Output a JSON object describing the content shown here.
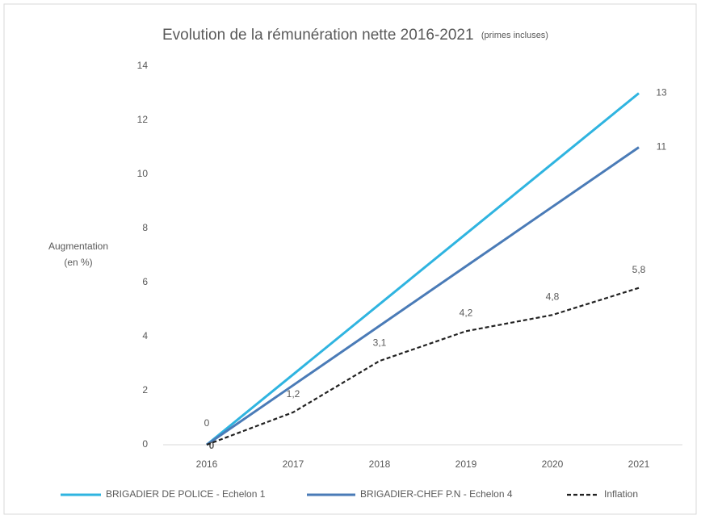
{
  "chart_data": {
    "type": "line",
    "title": "Evolution de la rémunération nette 2016-2021",
    "subtitle": "(primes incluses)",
    "y_label": [
      "Augmentation",
      "(en %)"
    ],
    "categories": [
      "2016",
      "2017",
      "2018",
      "2019",
      "2020",
      "2021"
    ],
    "series": [
      {
        "name": "BRIGADIER DE POLICE - Echelon 1",
        "color": "#2fb4e0",
        "dashed": false,
        "values": [
          0,
          2.6,
          5.2,
          7.8,
          10.4,
          13
        ],
        "value_labels": [
          "0",
          null,
          null,
          null,
          null,
          "13"
        ]
      },
      {
        "name": "BRIGADIER-CHEF P.N - Echelon 4",
        "color": "#4a7bb7",
        "dashed": false,
        "values": [
          0,
          2.2,
          4.4,
          6.6,
          8.8,
          11
        ],
        "value_labels": [
          "0",
          null,
          null,
          null,
          null,
          "11"
        ]
      },
      {
        "name": "Inflation",
        "color": "#222222",
        "dashed": true,
        "values": [
          0,
          1.2,
          3.1,
          4.2,
          4.8,
          5.8
        ],
        "value_labels": [
          null,
          "1,2",
          "3,1",
          "4,2",
          "4,8",
          "5,8"
        ]
      }
    ],
    "ylim": [
      0,
      14
    ],
    "yticks": [
      0,
      2,
      4,
      6,
      8,
      10,
      12,
      14
    ],
    "grid": false,
    "legend": "bottom"
  }
}
